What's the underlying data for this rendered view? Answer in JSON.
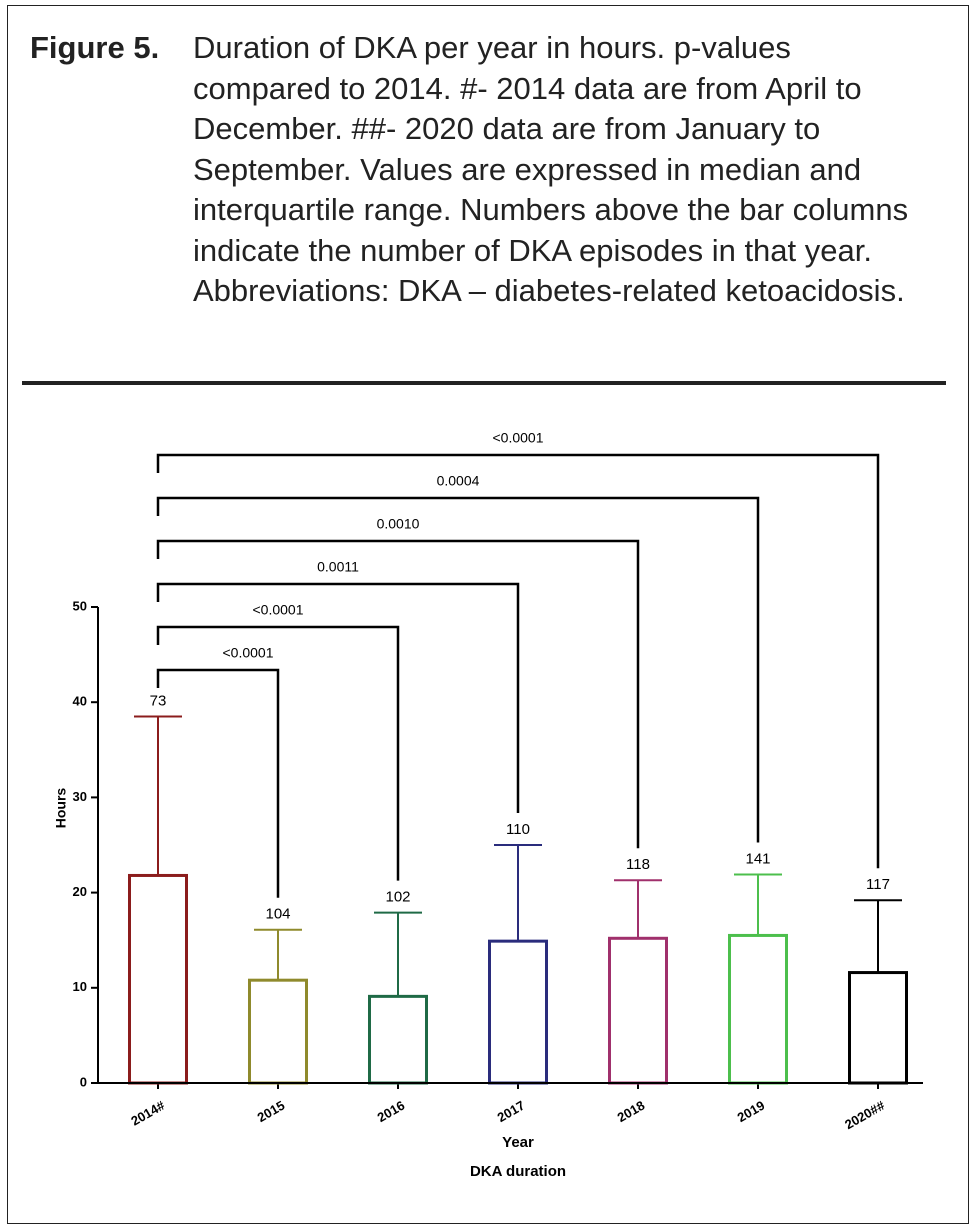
{
  "figure_label": "Figure 5.",
  "caption": "Duration of DKA per year in hours. p-values compared to 2014. #- 2014 data are from April to December. ##- 2020 data are from January to September. Values are expressed in median and interquartile range. Numbers above the bar columns indicate the number of DKA episodes in that year. Abbreviations: DKA – diabetes-related ketoacidosis.",
  "chart_data": {
    "type": "bar",
    "ylabel": "Hours",
    "xlabel": "Year",
    "subtitle": "DKA duration",
    "categories": [
      "2014#",
      "2015",
      "2016",
      "2017",
      "2018",
      "2019",
      "2020##"
    ],
    "values": [
      21.8,
      10.8,
      9.1,
      14.9,
      15.2,
      15.5,
      11.6
    ],
    "q3": [
      38.5,
      16.1,
      17.9,
      25.0,
      21.3,
      21.9,
      19.2
    ],
    "counts": [
      73,
      104,
      102,
      110,
      118,
      141,
      117
    ],
    "colors": [
      "#8b1c1c",
      "#8f8a2c",
      "#1f6a46",
      "#2a2c7c",
      "#a0306c",
      "#4cbf4c",
      "#000000"
    ],
    "comparisons": [
      "<0.0001",
      "<0.0001",
      "0.0011",
      "0.0010",
      "0.0004",
      "<0.0001"
    ],
    "ylim": [
      0,
      50
    ],
    "yticks": [
      0,
      10,
      20,
      30,
      40,
      50
    ]
  }
}
